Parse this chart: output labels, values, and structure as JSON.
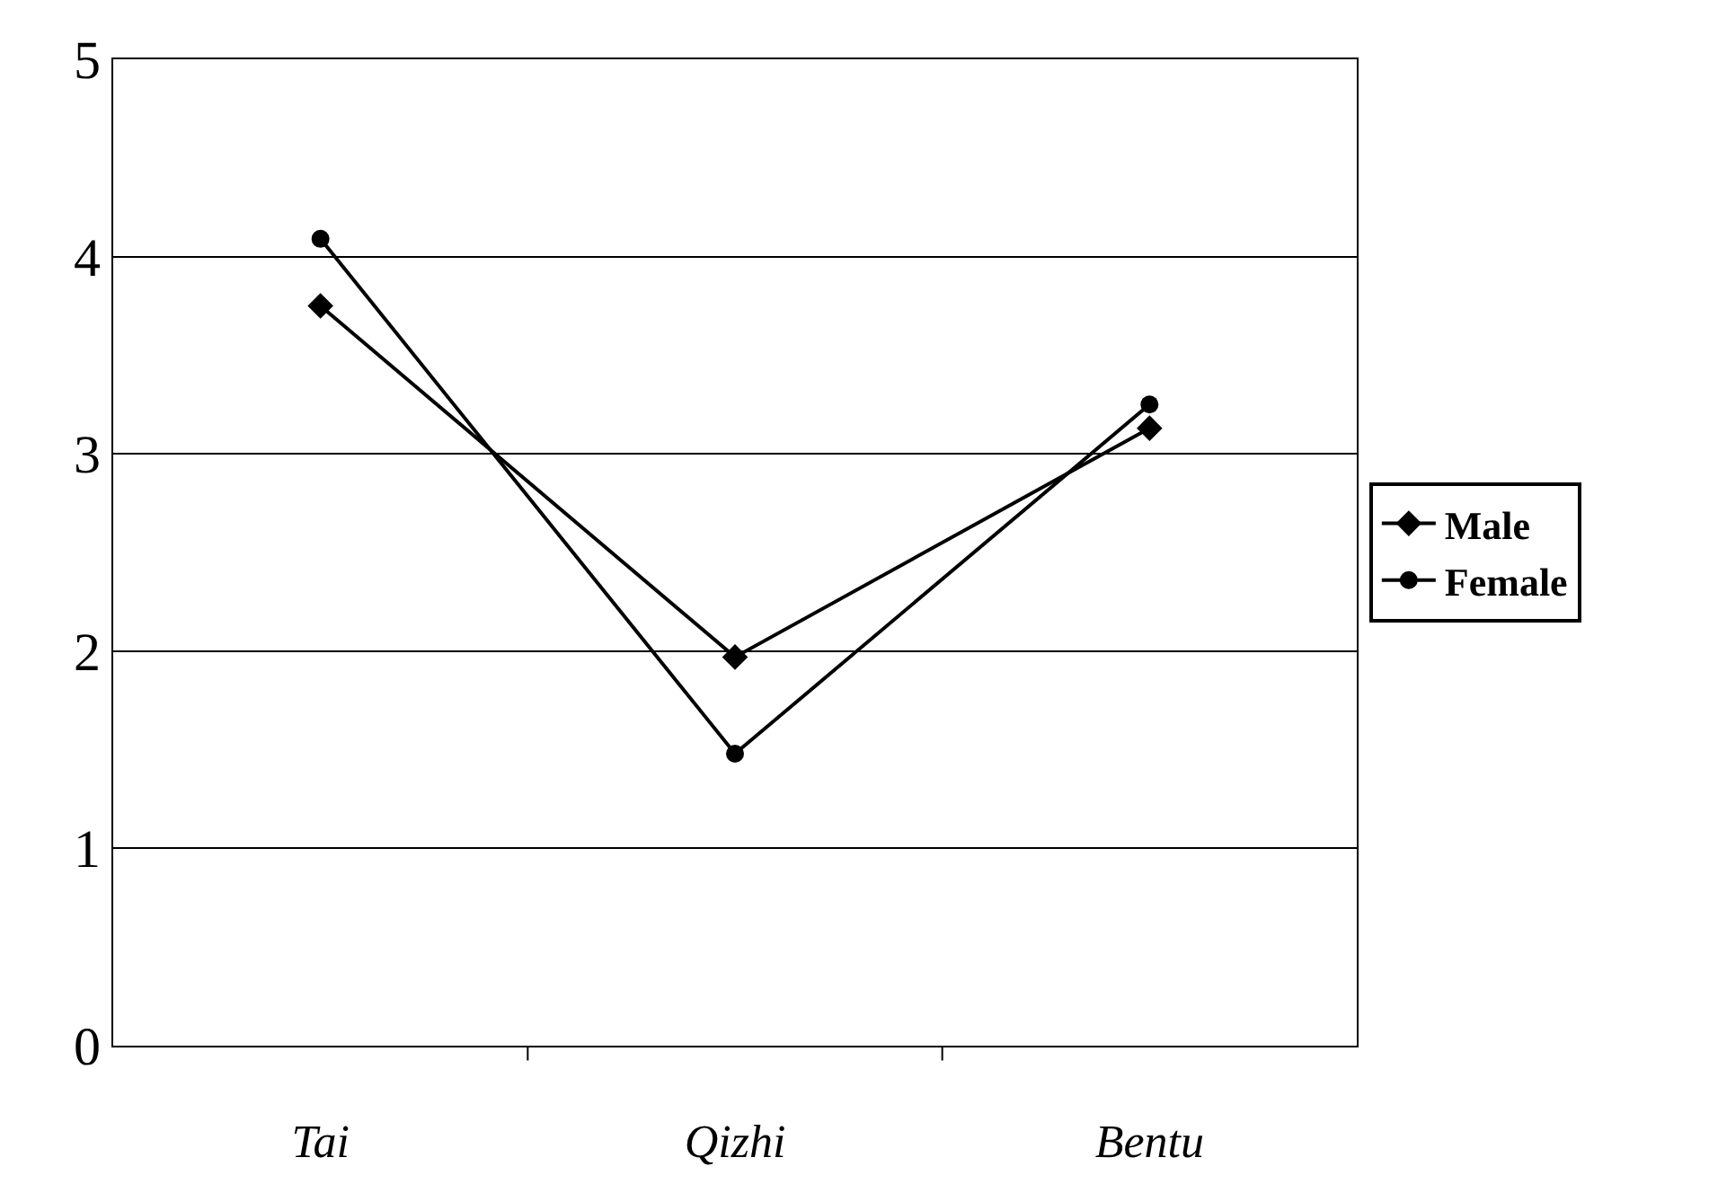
{
  "chart_data": {
    "type": "line",
    "categories": [
      "Tai",
      "Qizhi",
      "Bentu"
    ],
    "series": [
      {
        "name": "Male",
        "color": "#000000",
        "marker": "diamond",
        "values": [
          3.75,
          1.97,
          3.13
        ]
      },
      {
        "name": "Female",
        "color": "#000000",
        "marker": "circle",
        "values": [
          4.09,
          1.48,
          3.25
        ]
      }
    ],
    "ylim": [
      0,
      5
    ],
    "yticks": [
      0,
      1,
      2,
      3,
      4,
      5
    ],
    "grid": "y",
    "legend": "right",
    "line_style": "solid"
  }
}
